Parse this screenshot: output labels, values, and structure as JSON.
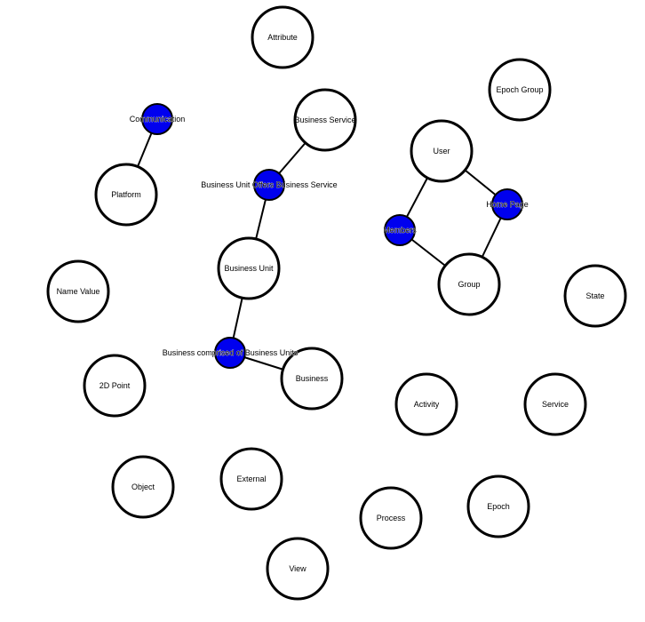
{
  "colors": {
    "background": "#ffffff",
    "entity_fill": "#ffffff",
    "entity_stroke": "#000000",
    "relationship_fill": "#0000ee",
    "edge": "#000000"
  },
  "entities": [
    {
      "id": "attribute",
      "label": "Attribute"
    },
    {
      "id": "epoch-group",
      "label": "Epoch Group"
    },
    {
      "id": "business-service",
      "label": "Business Service"
    },
    {
      "id": "user",
      "label": "User"
    },
    {
      "id": "platform",
      "label": "Platform"
    },
    {
      "id": "business-unit",
      "label": "Business Unit"
    },
    {
      "id": "group",
      "label": "Group"
    },
    {
      "id": "name-value",
      "label": "Name Value"
    },
    {
      "id": "state",
      "label": "State"
    },
    {
      "id": "2d-point",
      "label": "2D Point"
    },
    {
      "id": "business",
      "label": "Business"
    },
    {
      "id": "activity",
      "label": "Activity"
    },
    {
      "id": "service",
      "label": "Service"
    },
    {
      "id": "object",
      "label": "Object"
    },
    {
      "id": "external",
      "label": "External"
    },
    {
      "id": "epoch",
      "label": "Epoch"
    },
    {
      "id": "process",
      "label": "Process"
    },
    {
      "id": "view",
      "label": "View"
    }
  ],
  "relationships": [
    {
      "id": "communication",
      "label": "Communication",
      "connects": [
        "platform"
      ]
    },
    {
      "id": "business-unit-offers-business-service",
      "label": "Business Unit Offers Business Service",
      "connects": [
        "business-service",
        "business-unit"
      ]
    },
    {
      "id": "home-page",
      "label": "Home Page",
      "connects": [
        "user",
        "group"
      ]
    },
    {
      "id": "members",
      "label": "Members",
      "connects": [
        "user",
        "group"
      ]
    },
    {
      "id": "business-comprised-of-business-units",
      "label": "Business comprised of Business Units",
      "connects": [
        "business-unit",
        "business"
      ]
    }
  ]
}
